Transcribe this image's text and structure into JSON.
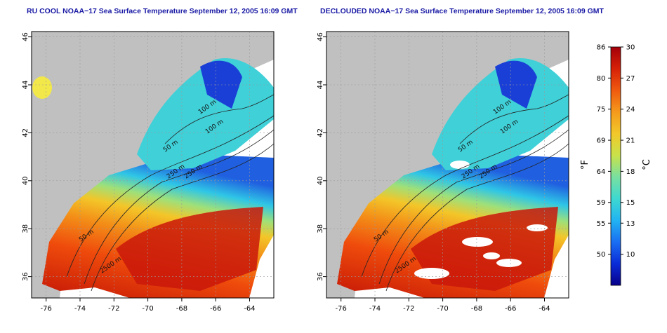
{
  "panels": [
    {
      "title": "RU COOL NOAA−17 Sea Surface Temperature September 12, 2005 16:09 GMT",
      "x_ticks": [
        "-76",
        "-74",
        "-72",
        "-70",
        "-68",
        "-66",
        "-64"
      ],
      "y_ticks": [
        "36",
        "38",
        "40",
        "42",
        "44",
        "46"
      ],
      "contour_labels": [
        "100 m",
        "100 m",
        "50 m",
        "250 m",
        "250 m",
        "50 m",
        "2500 m"
      ],
      "declouded": false
    },
    {
      "title": "DECLOUDED NOAA−17 Sea Surface Temperature September 12, 2005 16:09 GMT",
      "x_ticks": [
        "-76",
        "-74",
        "-72",
        "-70",
        "-68",
        "-66",
        "-64"
      ],
      "y_ticks": [
        "36",
        "38",
        "40",
        "42",
        "44",
        "46"
      ],
      "contour_labels": [
        "100 m",
        "100 m",
        "50 m",
        "250 m",
        "250 m",
        "50 m",
        "2500 m"
      ],
      "declouded": true
    }
  ],
  "colorbar": {
    "fahrenheit_unit": "°F",
    "celsius_unit": "°C",
    "fahrenheit_ticks": [
      "86",
      "80",
      "75",
      "69",
      "64",
      "59",
      "55",
      "50"
    ],
    "celsius_ticks": [
      "30",
      "27",
      "24",
      "21",
      "18",
      "15",
      "13",
      "10"
    ],
    "celsius_range": [
      7,
      30
    ],
    "colors": [
      "#08008a",
      "#0a2cd8",
      "#1a6ff2",
      "#22b4f2",
      "#3ed8d0",
      "#79e0a0",
      "#c8e24a",
      "#f2c82a",
      "#f59a1c",
      "#ef5a0f",
      "#d62108",
      "#a4000a"
    ]
  },
  "colors": {
    "land": "#c0c0c0",
    "title": "#1a1aa6",
    "contour": "#222222"
  }
}
